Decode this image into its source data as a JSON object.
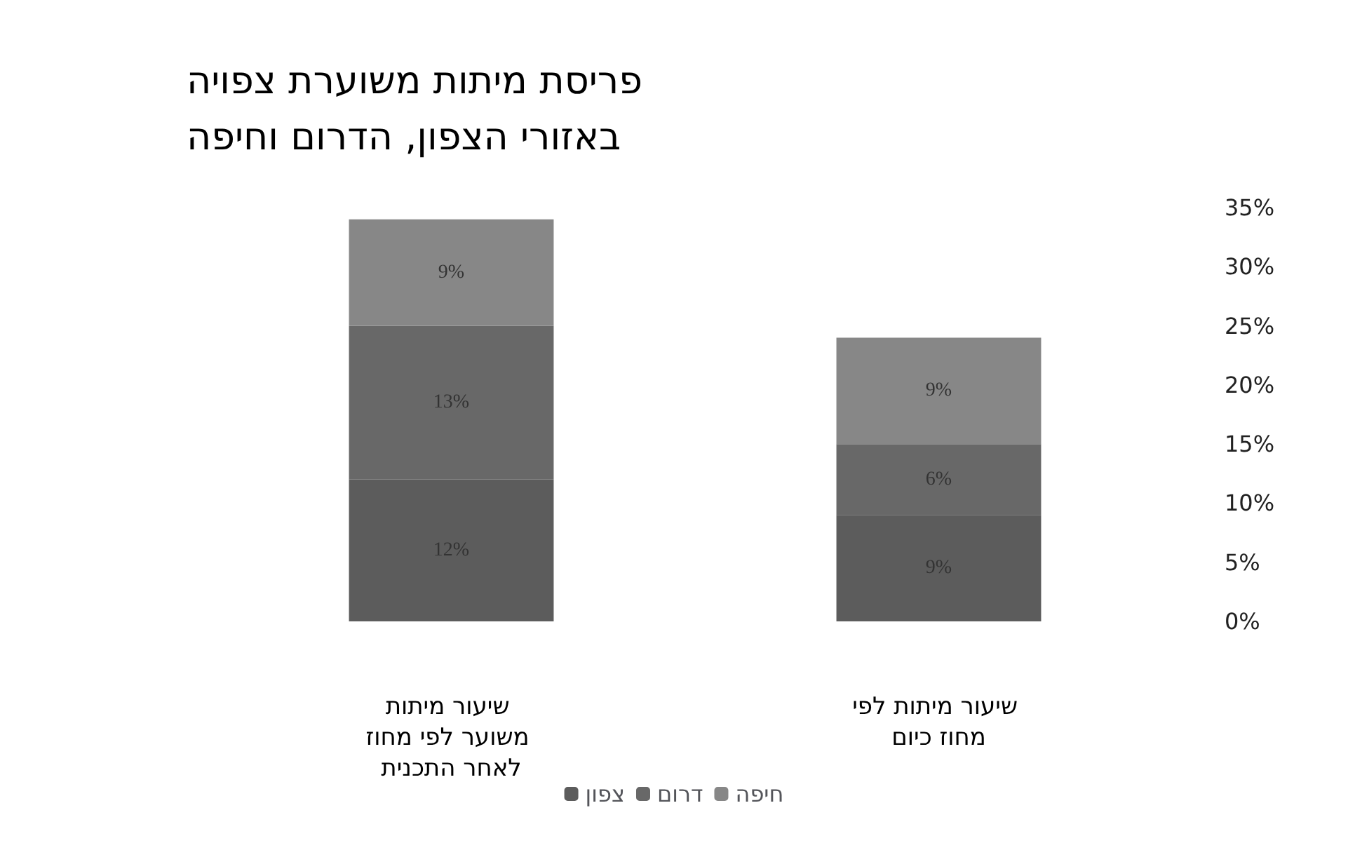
{
  "chart_data": {
    "type": "bar",
    "stacked": true,
    "title": "פריסת מיתות משוערת צפויה באזורי הצפון, הדרום וחיפה",
    "categories": [
      "שיעור מיתות משוער לפי מחוז לאחר התכנית",
      "שיעור מיתות לפי מחוז כיום"
    ],
    "series": [
      {
        "name": "צפון",
        "color": "#5c5c5c",
        "values": [
          12,
          9
        ],
        "value_labels": [
          "12%",
          "9%"
        ]
      },
      {
        "name": "דרום",
        "color": "#686868",
        "values": [
          13,
          6
        ],
        "value_labels": [
          "13%",
          "6%"
        ]
      },
      {
        "name": "חיפה",
        "color": "#878787",
        "values": [
          9,
          9
        ],
        "value_labels": [
          "9%",
          "9%"
        ]
      }
    ],
    "ylim": [
      0,
      35
    ],
    "yticks": [
      {
        "value": 0,
        "label": "0%"
      },
      {
        "value": 5,
        "label": "5%"
      },
      {
        "value": 10,
        "label": "10%"
      },
      {
        "value": 15,
        "label": "15%"
      },
      {
        "value": 20,
        "label": "20%"
      },
      {
        "value": 25,
        "label": "25%"
      },
      {
        "value": 30,
        "label": "30%"
      },
      {
        "value": 35,
        "label": "35%"
      }
    ],
    "grid": false,
    "legend": "bottom"
  }
}
